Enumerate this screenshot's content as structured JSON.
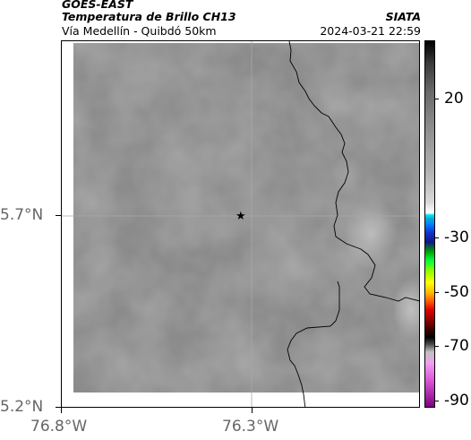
{
  "header": {
    "satellite": "GOES-EAST",
    "product": "Temperatura de Brillo CH13",
    "org": "SIATA",
    "route": "Vía Medellín - Quibdó 50km",
    "datetime": "2024-03-21 22:59"
  },
  "map": {
    "lat_ticks": [
      {
        "label": "5.7°N",
        "value": 5.7
      },
      {
        "label": "5.2°N",
        "value": 5.2
      }
    ],
    "lon_ticks": [
      {
        "label": "76.8°W",
        "value": -76.8
      },
      {
        "label": "76.3°W",
        "value": -76.3
      }
    ],
    "marker": {
      "name": "star-marker",
      "lon": -76.32,
      "lat": 5.7,
      "symbol": "★"
    },
    "base_color": "#8b8b8b"
  },
  "colorbar": {
    "ticks": [
      {
        "label": "20",
        "value": 20
      },
      {
        "label": "-30",
        "value": -30
      },
      {
        "label": "-50",
        "value": -50
      },
      {
        "label": "-70",
        "value": -70
      },
      {
        "label": "-90",
        "value": -90
      }
    ],
    "range": [
      -95,
      40
    ]
  }
}
